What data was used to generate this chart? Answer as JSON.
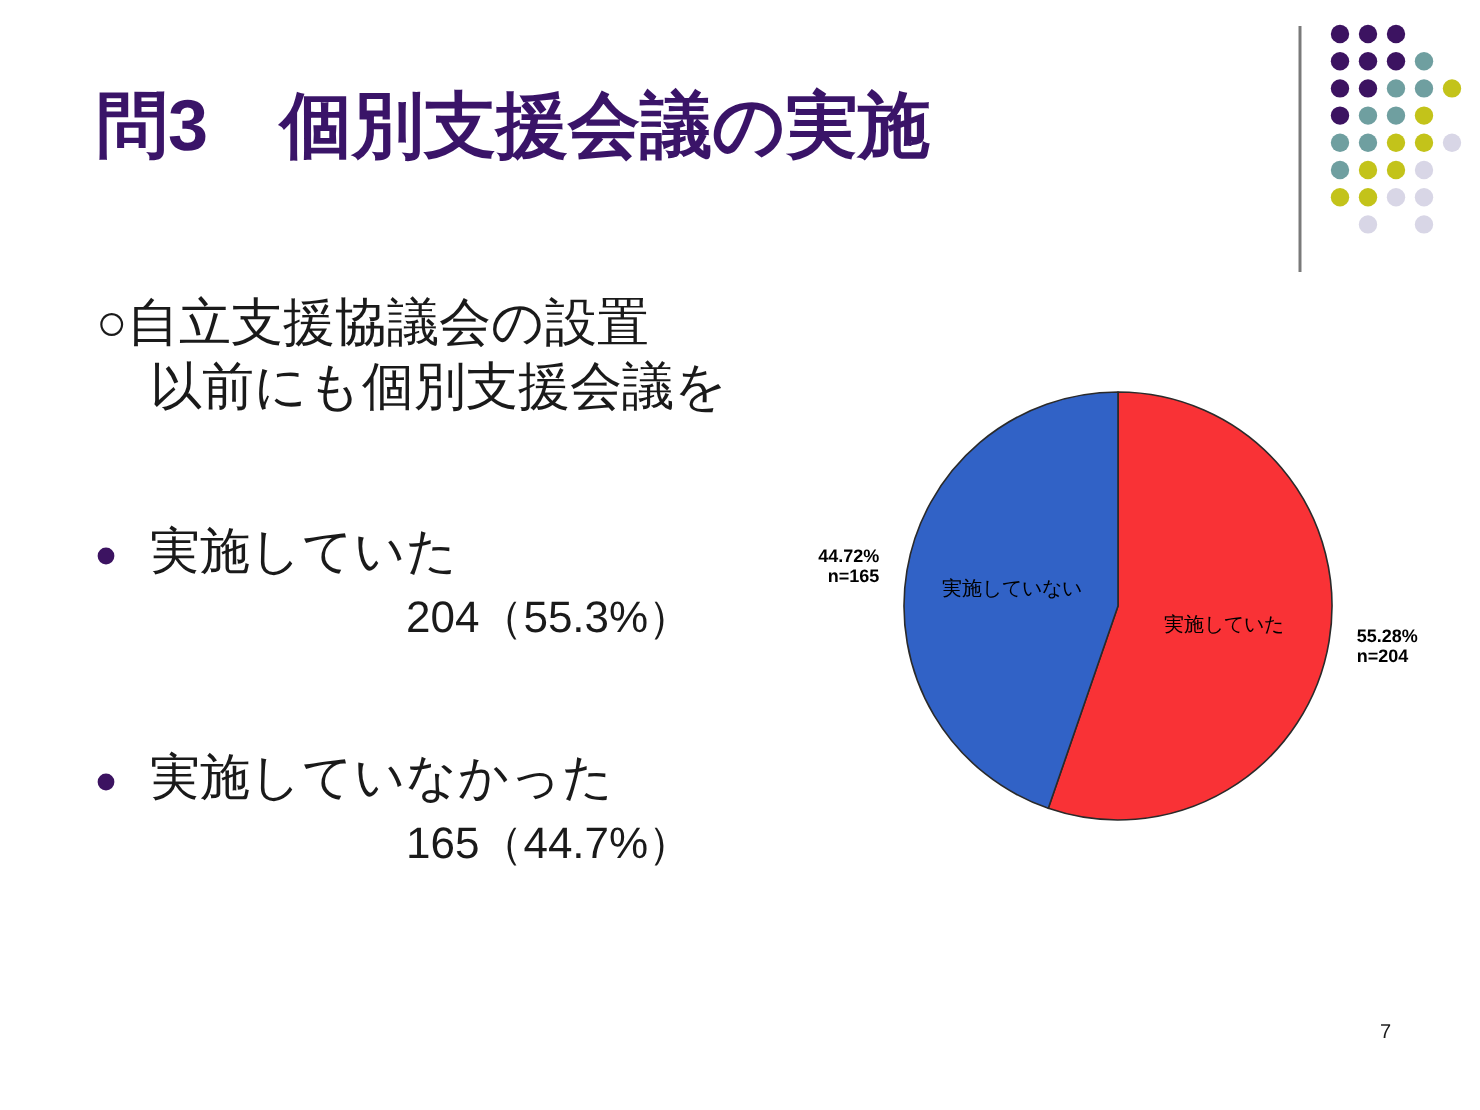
{
  "chart_data": {
    "type": "pie",
    "title": "問3　個別支援会議の実施",
    "categories": [
      "実施していた",
      "実施していない"
    ],
    "values": [
      55.28,
      44.72
    ],
    "colors": [
      "#f93236",
      "#3162c6"
    ],
    "value_labels": [
      "55.28%\nn=204",
      "44.72%\nn=165"
    ],
    "annotations": [
      "○自立支援協議会の設置",
      "以前にも個別支援会議を",
      "実施していた",
      "204（55.3%）",
      "実施していなかった",
      "165（44.7%）",
      "7"
    ]
  }
}
